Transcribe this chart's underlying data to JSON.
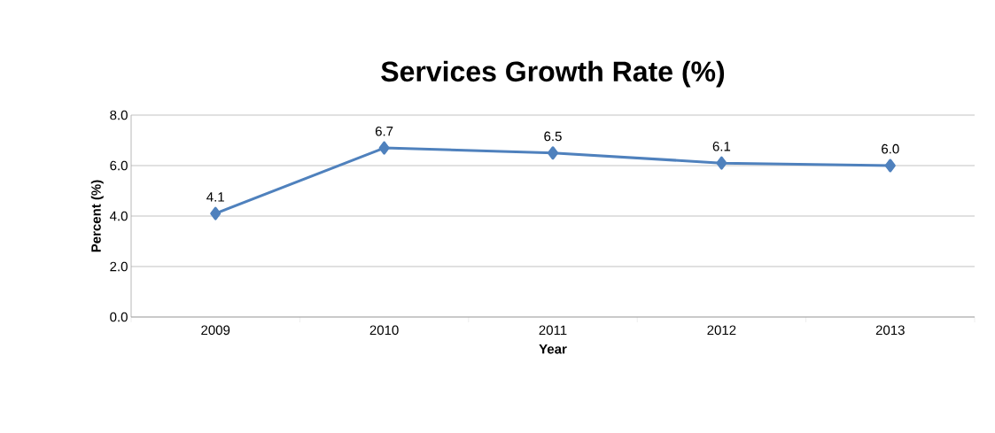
{
  "chart_data": {
    "type": "line",
    "title": "Services Growth Rate (%)",
    "xlabel": "Year",
    "ylabel": "Percent (%)",
    "categories": [
      "2009",
      "2010",
      "2011",
      "2012",
      "2013"
    ],
    "series": [
      {
        "color": "#4f81bd",
        "values": [
          4.1,
          6.7,
          6.5,
          6.1,
          6.0
        ],
        "value_labels": [
          "4.1",
          "6.7",
          "6.5",
          "6.1",
          "6.0"
        ]
      }
    ],
    "ylim": [
      0,
      8
    ],
    "yticks": [
      {
        "value": 0,
        "label": "0.0"
      },
      {
        "value": 2,
        "label": "2.0"
      },
      {
        "value": 4,
        "label": "4.0"
      },
      {
        "value": 6,
        "label": "6.0"
      },
      {
        "value": 8,
        "label": "8.0"
      }
    ],
    "grid": "y",
    "marker": "diamond",
    "line_style": "solid"
  }
}
